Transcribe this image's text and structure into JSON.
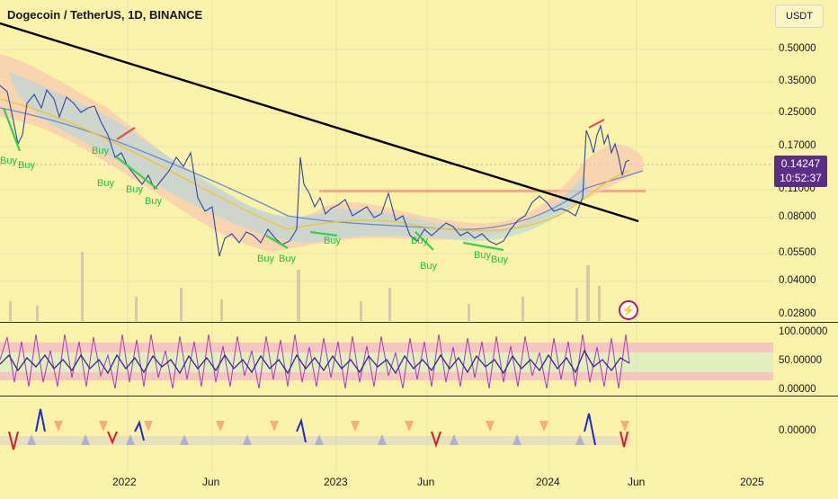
{
  "title": "Dogecoin / TetherUS, 1D, BINANCE",
  "currency_button": "USDT",
  "price_axis": [
    "0.50000",
    "0.35000",
    "0.25000",
    "0.17000",
    "0.11000",
    "0.08000",
    "0.05500",
    "0.04000",
    "0.02800"
  ],
  "current_price": {
    "value": "0.14247",
    "countdown": "10:52:37"
  },
  "oscillator_axis": [
    "100.00000",
    "50.00000",
    "0.00000"
  ],
  "lower_axis": [
    "0.00000"
  ],
  "time_axis": [
    "2022",
    "Jun",
    "2023",
    "Jun",
    "2024",
    "Jun",
    "2025"
  ],
  "buy_label": "Buy",
  "colors": {
    "background": "#fbf2a9",
    "price_tag": "#5a2d86",
    "trendline": "#000000",
    "buy_signal": "#19c43a",
    "oscillator_line": "#3a2391",
    "oscillator_secondary": "#a23bbf"
  },
  "icons": [
    "lightning-icon"
  ]
}
